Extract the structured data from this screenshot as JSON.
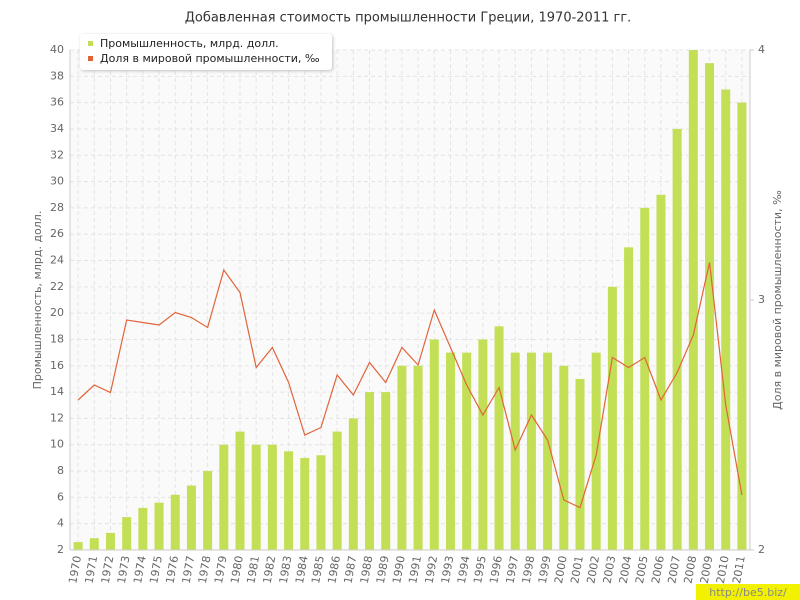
{
  "chart_data": {
    "type": "bar-line",
    "title": "Добавленная стоимость промышленности Греции, 1970-2011 гг.",
    "y_label": "Промышленность, млрд. долл.",
    "y2_label": "Доля в мировой промышленности, ‰",
    "watermark": "http://be5.biz/",
    "categories": [
      "1970",
      "1971",
      "1972",
      "1973",
      "1974",
      "1975",
      "1976",
      "1977",
      "1978",
      "1979",
      "1980",
      "1981",
      "1982",
      "1983",
      "1984",
      "1985",
      "1986",
      "1987",
      "1988",
      "1989",
      "1990",
      "1991",
      "1992",
      "1993",
      "1994",
      "1995",
      "1996",
      "1997",
      "1998",
      "1999",
      "2000",
      "2001",
      "2002",
      "2003",
      "2004",
      "2005",
      "2006",
      "2007",
      "2008",
      "2009",
      "2010",
      "2011"
    ],
    "series": [
      {
        "name": "Промышленность, млрд. долл.",
        "color": "#c3df55",
        "type": "bar",
        "values": [
          2.6,
          2.9,
          3.3,
          4.5,
          5.2,
          5.6,
          6.2,
          6.9,
          8,
          10,
          11,
          10,
          10,
          9.5,
          9,
          9.2,
          11,
          12,
          14,
          14,
          16,
          16,
          18,
          17,
          17,
          18,
          19,
          17,
          17,
          17,
          16,
          15,
          17,
          22,
          25,
          28,
          29,
          34,
          40,
          39,
          37,
          36
        ]
      },
      {
        "name": "Доля в мировой промышленности, ‰",
        "color": "#e0643a",
        "type": "line",
        "axis": "y2",
        "values": [
          2.6,
          2.66,
          2.63,
          2.92,
          2.91,
          2.9,
          2.95,
          2.93,
          2.89,
          3.12,
          3.03,
          2.73,
          2.81,
          2.67,
          2.46,
          2.49,
          2.7,
          2.62,
          2.75,
          2.67,
          2.81,
          2.74,
          2.96,
          2.81,
          2.66,
          2.54,
          2.65,
          2.4,
          2.54,
          2.44,
          2.2,
          2.17,
          2.38,
          2.77,
          2.73,
          2.77,
          2.6,
          2.71,
          2.86,
          3.15,
          2.58,
          2.22
        ]
      }
    ],
    "ylim": [
      2,
      40
    ],
    "yticks": [
      2,
      4,
      6,
      8,
      10,
      12,
      14,
      16,
      18,
      20,
      22,
      24,
      26,
      28,
      30,
      32,
      34,
      36,
      38,
      40
    ],
    "y2lim": [
      2,
      4
    ],
    "y2ticks": [
      2,
      3,
      4
    ],
    "grid": true,
    "legend": "top-left"
  }
}
